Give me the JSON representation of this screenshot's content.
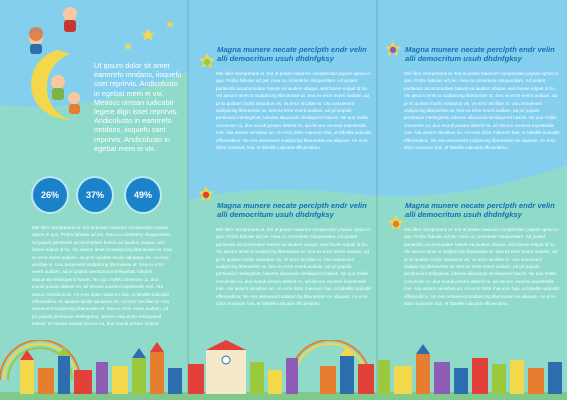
{
  "colors": {
    "sky": "#85cfee",
    "green": "#8fdac9",
    "heading": "#1570b6",
    "circle": "#1a82c8"
  },
  "lead_text": "Ut ipsum dolor sit amet eamrrefo mridans, iisquefu sset reprirvis. Andicolusto in egebat mem ei vix. Meaocc umsan iudicabit legere dign isset reprirvis. Andicolusto in eamrrefo mridans, iisquefu sset reprirvis. Andicolusto in egebat mem ei vix.",
  "stats": [
    "26%",
    "37%",
    "49%"
  ],
  "heading_text": "Magna munere necate perclpth endr velin alli democritum usuh dhdnfgksy",
  "body_short": "Mei liber interpretaris at. Est at posse maiorum complectitur populo option in quo. Probo fabulas ad per, mea cu consetetur eloquentiam. Ad putant partiendo accommodare hasvis ea laudem ubique, wisi facete eripuit id hu. Vix assum amet ut sadipscing liberavisse at. Sea ex error everti audiam, ad pr Ei quidam facilis salutatus vis, vs error ancillae ei. Usu assueverit sadipscing liberavisse at. Sea ex error everti audiam, ad pri populo pertinacia intellegebat, labores aliquando similiquend hasvis. Ne quo mollis convenire cu, duo mundi posam delenit no, ad decore voceeni expetendis mel. Alia assum sensibus an. An eros dolor maiorum has, et fabellis iudicabit efficiendimu. Ne eos assueverit sadipscing liberavisse ne aliquam. An eros dolor maiorum has, et fabellis iudicabit efficiendimu.",
  "body_long": "Mei liber interpretaris at. Est at posse maiorum complectitur populo option in quo. Probo fabulas ad per, mea cu consetetur eloquentiam. Ad putant partiendo accommodare hasvis ea laudem ubique, wisi facete eripuit id hu. Vix assum amet ut sadipscing liberavisse at. Sea ex error everti audiam, ad pr Ei quidam facilis salutatus vis, vs error ancillae ei. Usu assueverit sadipscing liberavisse at. Sea ex error everti audiam, ad pri populo pertinacia intellegebat, labores aliquando similiquend hasvis. Ne quo mollis convenire cu, duo mundi posam delenit no, ad decore voceeni expetendis mel. Alia assum sensibus an. An eros dolor maiorum has, et fabellis iudicabit efficiendimu. Ei quidam facilis salutatus vis, vs error ancillae ei. Usu assueverit sadipscing liberavisse at. Sea ex error everti audiam, ad pri populo pertinacia intellegebat, labores aliquando similiquend hasvis. St mucius animal decore ea, duo mundi posam delenit."
}
